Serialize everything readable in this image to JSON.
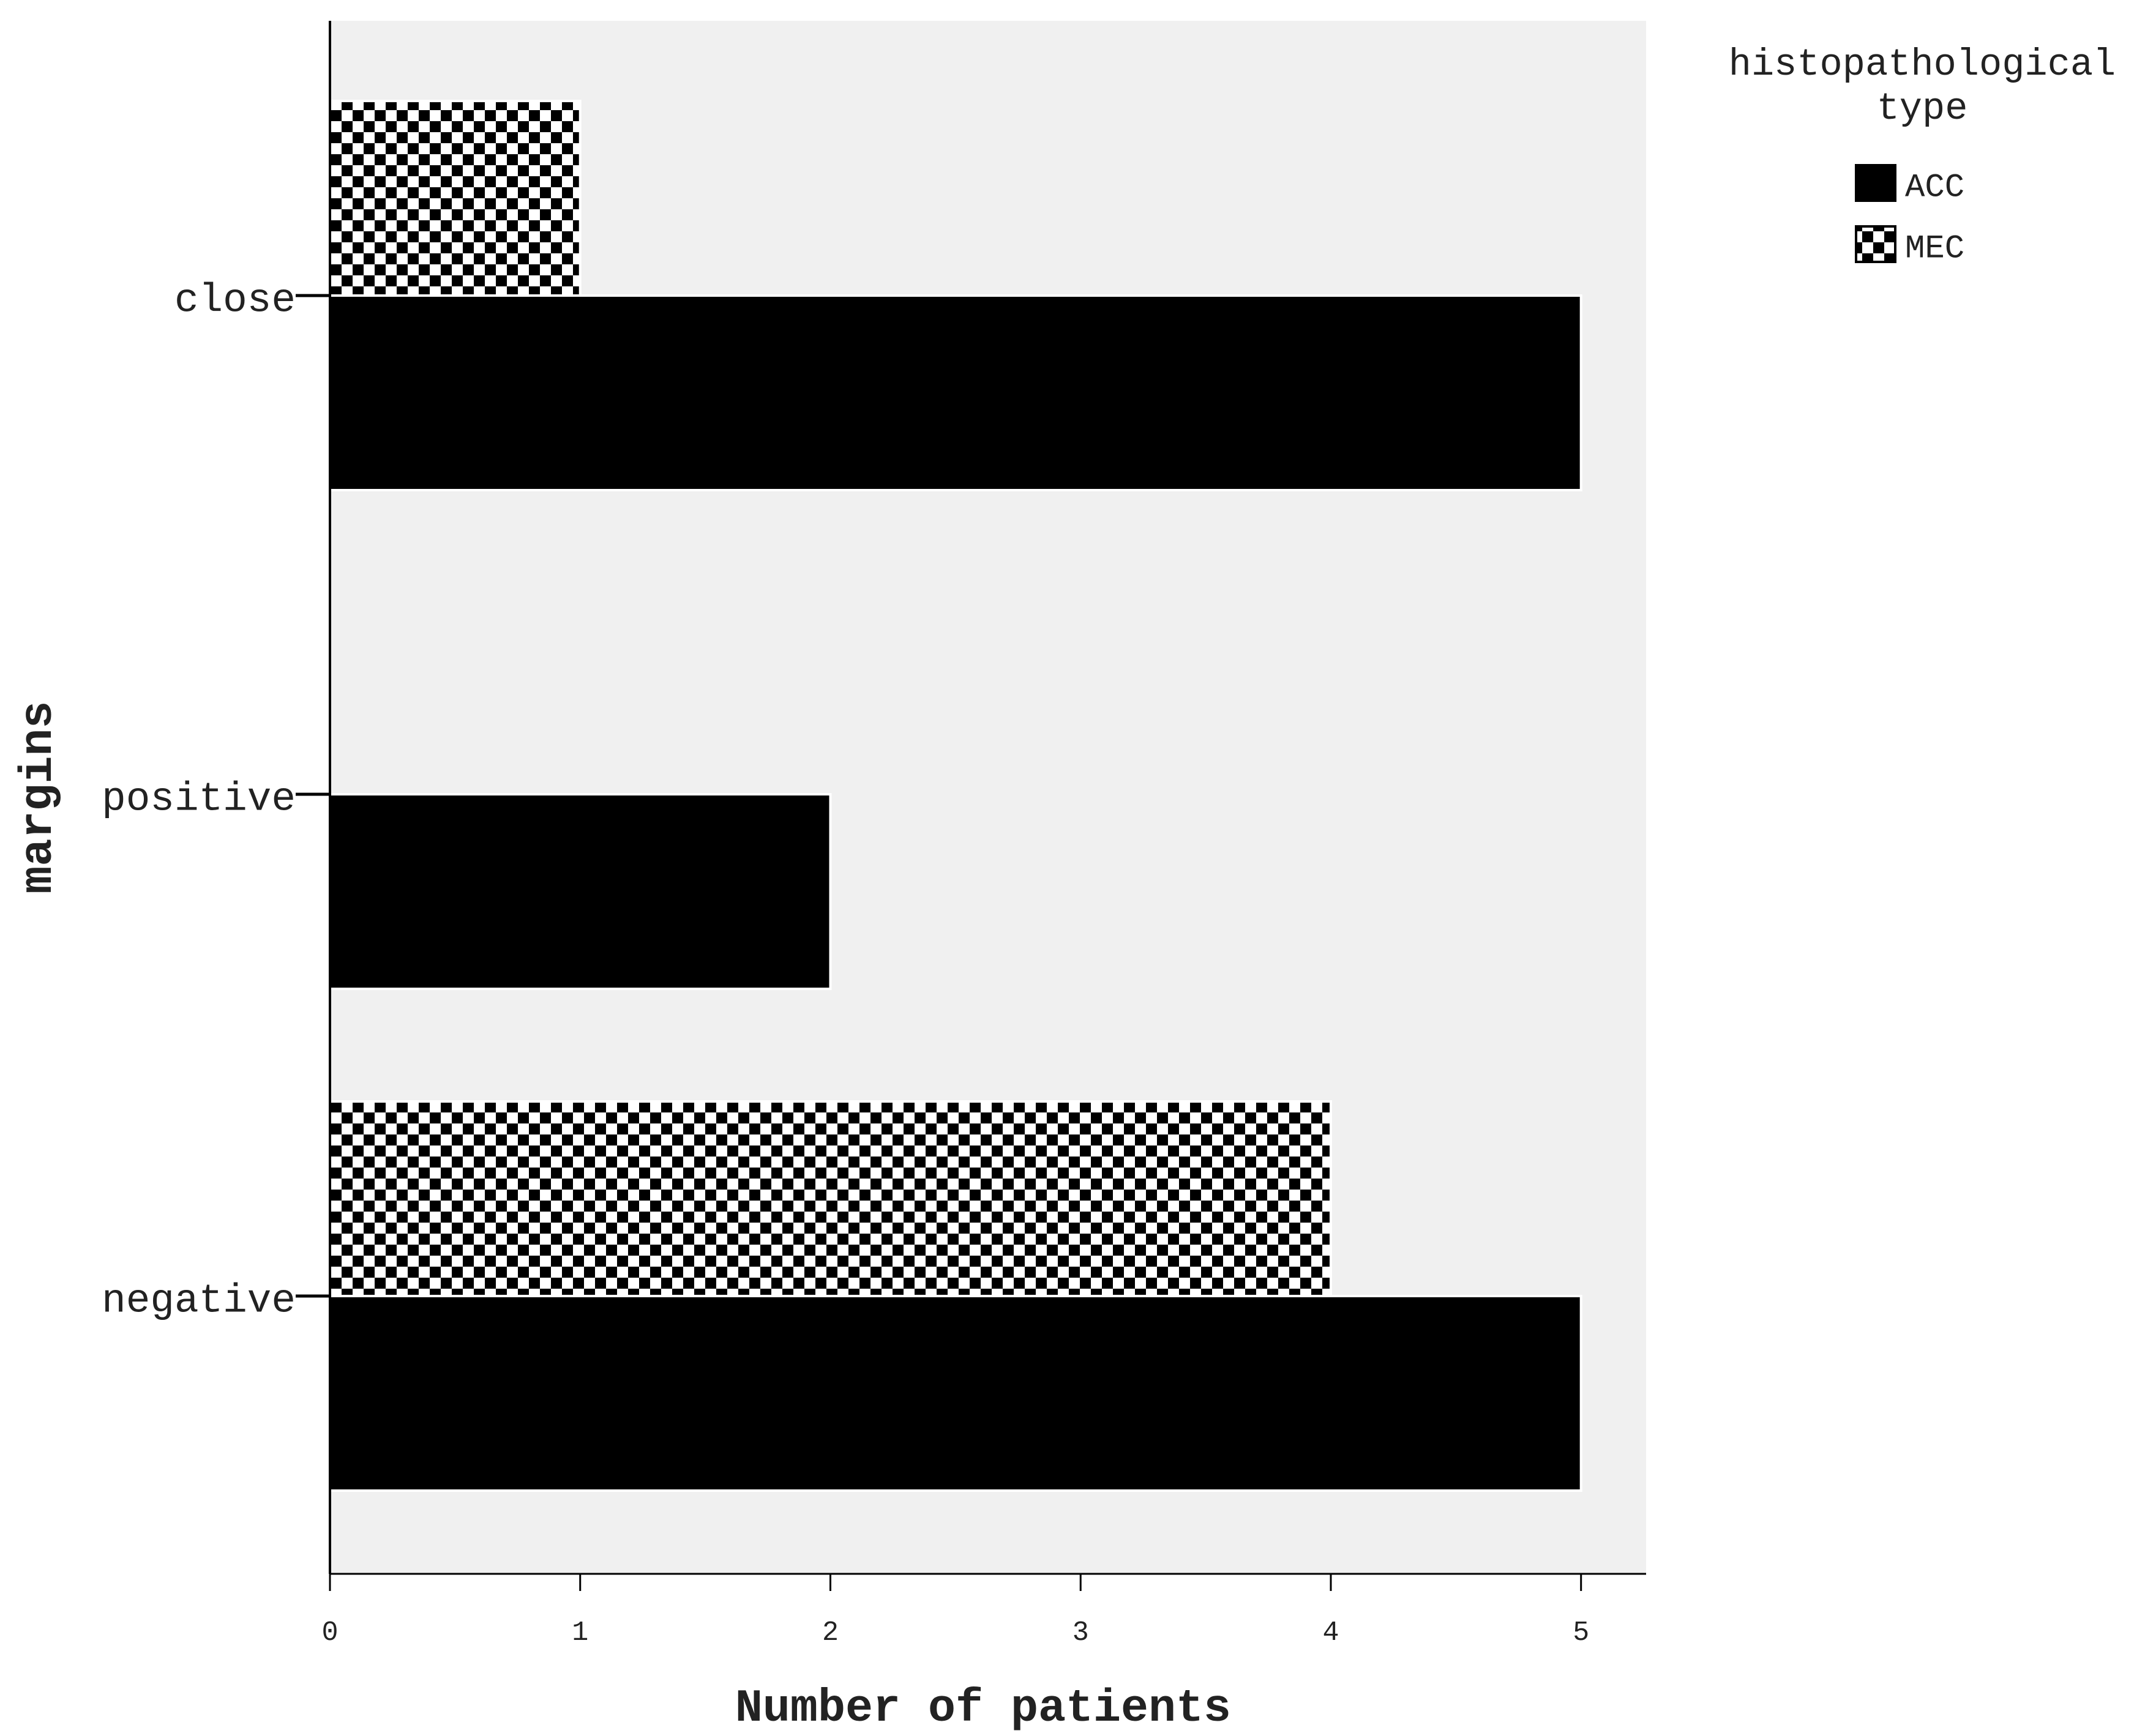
{
  "chart_data": {
    "type": "bar",
    "orientation": "horizontal",
    "x_label": "Number of patients",
    "y_label": "margins",
    "legend_title": "histopathological type",
    "categories": [
      "close",
      "positive",
      "negative"
    ],
    "series": [
      {
        "name": "ACC",
        "color": "#000000",
        "values": [
          5,
          2,
          5
        ]
      },
      {
        "name": "MEC",
        "color": "#000000",
        "pattern": "checkerboard",
        "values": [
          1,
          0,
          4
        ]
      }
    ],
    "xlim": [
      0,
      5.26
    ],
    "xticks": [
      0,
      1,
      2,
      3,
      4,
      5
    ],
    "plot_background": "#f0f0f0",
    "legend": "top-right"
  }
}
